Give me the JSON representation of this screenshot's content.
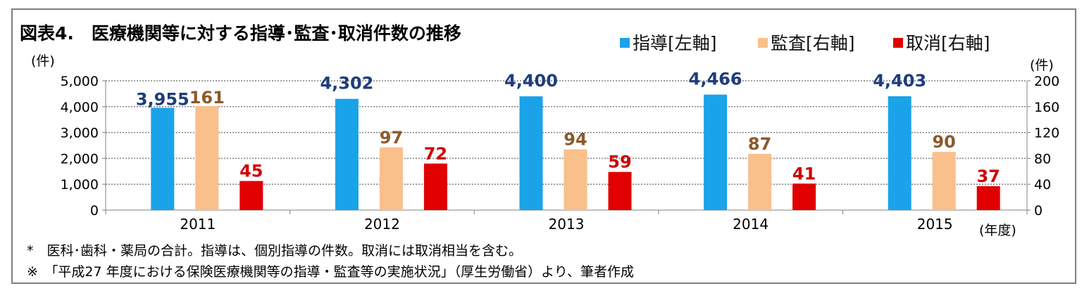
{
  "title": "図表4.　医療機関等に対する指導･監査･取消件数の推移",
  "legend": [
    {
      "label": "指導[左軸]",
      "color": "#1aa3e8"
    },
    {
      "label": "監査[右軸]",
      "color": "#f9c08c"
    },
    {
      "label": "取消[右軸]",
      "color": "#e00000"
    }
  ],
  "left_unit": "(件)",
  "right_unit": "(件)",
  "x_unit": "(年度)",
  "notes": [
    "*　医科･歯科・薬局の合計。指導は、個別指導の件数。取消には取消相当を含む。",
    "※　「平成27 年度における保険医療機関等の指導・監査等の実施状況」（厚生労働省）より、筆者作成"
  ],
  "chart_data": {
    "type": "bar",
    "categories": [
      "2011",
      "2012",
      "2013",
      "2014",
      "2015"
    ],
    "series": [
      {
        "name": "指導[左軸]",
        "axis": "left",
        "color": "#1aa3e8",
        "label_color": "#1f3d7a",
        "values": [
          3955,
          4302,
          4400,
          4466,
          4403
        ],
        "labels": [
          "3,955",
          "4,302",
          "4,400",
          "4,466",
          "4,403"
        ]
      },
      {
        "name": "監査[右軸]",
        "axis": "right",
        "color": "#f9c08c",
        "label_color": "#8c5a2b",
        "values": [
          161,
          97,
          94,
          87,
          90
        ],
        "labels": [
          "161",
          "97",
          "94",
          "87",
          "90"
        ]
      },
      {
        "name": "取消[右軸]",
        "axis": "right",
        "color": "#e00000",
        "label_color": "#d00000",
        "values": [
          45,
          72,
          59,
          41,
          37
        ],
        "labels": [
          "45",
          "72",
          "59",
          "41",
          "37"
        ]
      }
    ],
    "left_axis": {
      "min": 0,
      "max": 5000,
      "ticks": [
        0,
        1000,
        2000,
        3000,
        4000,
        5000
      ],
      "tick_labels": [
        "0",
        "1,000",
        "2,000",
        "3,000",
        "4,000",
        "5,000"
      ]
    },
    "right_axis": {
      "min": 0,
      "max": 200,
      "ticks": [
        0,
        40,
        80,
        120,
        160,
        200
      ],
      "tick_labels": [
        "0",
        "40",
        "80",
        "120",
        "160",
        "200"
      ]
    },
    "grid": true,
    "legend_position": "top-right"
  }
}
